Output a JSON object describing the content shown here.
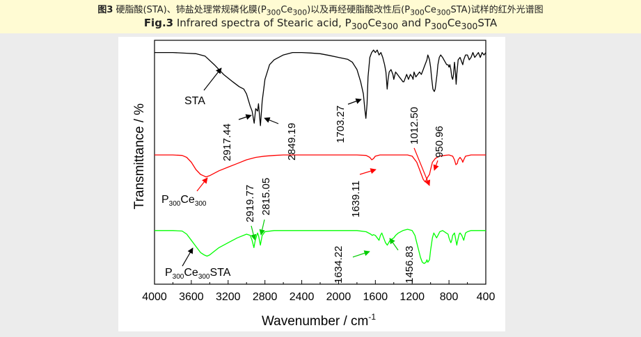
{
  "caption": {
    "cn_prefix": "图3",
    "cn_text_a": "硬脂酸(STA)、铈盐处理常规磷化膜(P",
    "cn_sub_a": "300",
    "cn_text_b": "Ce",
    "cn_sub_b": "300",
    "cn_text_c": ")以及再经硬脂酸改性后(P",
    "cn_sub_c": "300",
    "cn_text_d": "Ce",
    "cn_sub_d": "300",
    "cn_text_e": "STA)试样的红外光谱图",
    "en_prefix": "Fig.3",
    "en_text_a": "Infrared spectra of Stearic acid, P",
    "en_sub_a": "300",
    "en_text_b": "Ce",
    "en_sub_b": "300",
    "en_text_c": "and P",
    "en_sub_c": "300",
    "en_text_d": "Ce",
    "en_sub_d": "300",
    "en_text_e": "STA"
  },
  "chart_data": {
    "type": "line",
    "title": "Infrared spectra of Stearic acid, P300Ce300 and P300Ce300STA",
    "xlabel": "Wavenumber / cm",
    "xlabel_sup": "-1",
    "ylabel": "Transmittance / %",
    "xlim": [
      4000,
      400
    ],
    "ylim": [
      0,
      100
    ],
    "x_ticks": [
      4000,
      3600,
      3200,
      2800,
      2400,
      2000,
      1600,
      1200,
      800,
      400
    ],
    "y_ticks_labeled": false,
    "grid": false,
    "series": [
      {
        "name": "STA",
        "color": "#000000",
        "label_parts": [
          "STA"
        ],
        "points": [
          [
            4000,
            95
          ],
          [
            3800,
            95
          ],
          [
            3650,
            94.7
          ],
          [
            3550,
            94.5
          ],
          [
            3450,
            93.5
          ],
          [
            3350,
            90
          ],
          [
            3250,
            86
          ],
          [
            3150,
            83
          ],
          [
            3080,
            81
          ],
          [
            3030,
            80
          ],
          [
            3000,
            78
          ],
          [
            2960,
            73
          ],
          [
            2940,
            71
          ],
          [
            2917,
            66
          ],
          [
            2900,
            72
          ],
          [
            2880,
            71
          ],
          [
            2870,
            74
          ],
          [
            2849,
            65
          ],
          [
            2830,
            75
          ],
          [
            2800,
            84
          ],
          [
            2750,
            90
          ],
          [
            2700,
            92
          ],
          [
            2600,
            94
          ],
          [
            2500,
            95
          ],
          [
            2400,
            95
          ],
          [
            2300,
            94.8
          ],
          [
            2200,
            94.5
          ],
          [
            2100,
            93.8
          ],
          [
            2000,
            93
          ],
          [
            1900,
            92.2
          ],
          [
            1850,
            91
          ],
          [
            1800,
            88
          ],
          [
            1760,
            83
          ],
          [
            1730,
            78
          ],
          [
            1715,
            72
          ],
          [
            1703,
            68
          ],
          [
            1690,
            74
          ],
          [
            1680,
            85
          ],
          [
            1660,
            93
          ],
          [
            1640,
            95
          ],
          [
            1620,
            96
          ],
          [
            1600,
            95
          ],
          [
            1580,
            96
          ],
          [
            1560,
            94
          ],
          [
            1540,
            95
          ],
          [
            1520,
            93
          ],
          [
            1500,
            90
          ],
          [
            1485,
            87
          ],
          [
            1472,
            80
          ],
          [
            1462,
            84
          ],
          [
            1450,
            87
          ],
          [
            1430,
            88
          ],
          [
            1410,
            86
          ],
          [
            1400,
            84
          ],
          [
            1380,
            87
          ],
          [
            1360,
            86
          ],
          [
            1340,
            85
          ],
          [
            1320,
            84
          ],
          [
            1300,
            83
          ],
          [
            1290,
            83
          ],
          [
            1280,
            84
          ],
          [
            1260,
            86
          ],
          [
            1240,
            84
          ],
          [
            1220,
            86
          ],
          [
            1200,
            85
          ],
          [
            1190,
            84
          ],
          [
            1180,
            87
          ],
          [
            1160,
            85
          ],
          [
            1140,
            86
          ],
          [
            1120,
            87
          ],
          [
            1100,
            86
          ],
          [
            1080,
            88
          ],
          [
            1060,
            90
          ],
          [
            1040,
            92
          ],
          [
            1030,
            94
          ],
          [
            1020,
            93
          ],
          [
            1012,
            92
          ],
          [
            1000,
            89
          ],
          [
            990,
            85
          ],
          [
            975,
            80
          ],
          [
            960,
            79
          ],
          [
            950,
            80
          ],
          [
            940,
            83
          ],
          [
            930,
            86
          ],
          [
            920,
            90
          ],
          [
            905,
            93
          ],
          [
            890,
            94
          ],
          [
            870,
            93
          ],
          [
            855,
            92
          ],
          [
            840,
            91
          ],
          [
            825,
            90
          ],
          [
            810,
            90
          ],
          [
            800,
            89
          ],
          [
            790,
            90
          ],
          [
            780,
            88
          ],
          [
            770,
            85
          ],
          [
            760,
            84
          ],
          [
            750,
            86
          ],
          [
            740,
            91
          ],
          [
            730,
            87
          ],
          [
            722,
            82
          ],
          [
            715,
            86
          ],
          [
            700,
            92
          ],
          [
            680,
            93
          ],
          [
            660,
            91
          ],
          [
            650,
            90
          ],
          [
            640,
            92
          ],
          [
            620,
            94
          ],
          [
            600,
            94
          ],
          [
            580,
            92
          ],
          [
            560,
            93
          ],
          [
            540,
            95
          ],
          [
            520,
            93
          ],
          [
            500,
            94
          ],
          [
            480,
            95
          ],
          [
            460,
            93
          ],
          [
            440,
            95
          ],
          [
            420,
            94
          ],
          [
            400,
            95
          ]
        ]
      },
      {
        "name": "P300Ce300",
        "color": "#ff0000",
        "label_parts": [
          "P",
          "300",
          "Ce",
          "300"
        ],
        "points": [
          [
            4000,
            53
          ],
          [
            3800,
            53
          ],
          [
            3700,
            52.8
          ],
          [
            3650,
            52
          ],
          [
            3600,
            50
          ],
          [
            3550,
            47
          ],
          [
            3500,
            45
          ],
          [
            3470,
            44.5
          ],
          [
            3440,
            44
          ],
          [
            3400,
            44.5
          ],
          [
            3350,
            45.5
          ],
          [
            3300,
            46.5
          ],
          [
            3200,
            48
          ],
          [
            3100,
            49.5
          ],
          [
            3000,
            51
          ],
          [
            2900,
            52
          ],
          [
            2800,
            52.5
          ],
          [
            2700,
            52.8
          ],
          [
            2600,
            53
          ],
          [
            2400,
            53
          ],
          [
            2200,
            53
          ],
          [
            2000,
            53
          ],
          [
            1800,
            53
          ],
          [
            1700,
            52.8
          ],
          [
            1660,
            52
          ],
          [
            1639,
            51
          ],
          [
            1620,
            51.5
          ],
          [
            1600,
            52.5
          ],
          [
            1550,
            53
          ],
          [
            1450,
            53
          ],
          [
            1350,
            53
          ],
          [
            1250,
            53
          ],
          [
            1200,
            52.5
          ],
          [
            1150,
            50
          ],
          [
            1120,
            47
          ],
          [
            1100,
            45
          ],
          [
            1080,
            43
          ],
          [
            1060,
            42
          ],
          [
            1050,
            42.5
          ],
          [
            1030,
            44
          ],
          [
            1012,
            45
          ],
          [
            1000,
            47
          ],
          [
            980,
            50
          ],
          [
            960,
            51
          ],
          [
            950,
            51.5
          ],
          [
            930,
            52
          ],
          [
            900,
            52.5
          ],
          [
            850,
            52.8
          ],
          [
            800,
            53
          ],
          [
            760,
            52.5
          ],
          [
            740,
            51
          ],
          [
            725,
            49
          ],
          [
            710,
            49.5
          ],
          [
            700,
            51
          ],
          [
            680,
            52
          ],
          [
            660,
            51
          ],
          [
            650,
            50
          ],
          [
            640,
            51
          ],
          [
            620,
            52.5
          ],
          [
            560,
            53
          ],
          [
            500,
            53
          ],
          [
            450,
            53
          ],
          [
            400,
            53
          ]
        ]
      },
      {
        "name": "P300Ce300STA",
        "color": "#00ff00",
        "label_parts": [
          "P",
          "300",
          "Ce",
          "300",
          "STA"
        ],
        "points": [
          [
            4000,
            22
          ],
          [
            3800,
            22
          ],
          [
            3700,
            21.8
          ],
          [
            3650,
            20.5
          ],
          [
            3600,
            18
          ],
          [
            3550,
            15.5
          ],
          [
            3500,
            13
          ],
          [
            3460,
            12
          ],
          [
            3430,
            11.5
          ],
          [
            3400,
            12
          ],
          [
            3350,
            13.5
          ],
          [
            3300,
            15
          ],
          [
            3200,
            17
          ],
          [
            3100,
            19
          ],
          [
            3000,
            20.5
          ],
          [
            2960,
            20
          ],
          [
            2940,
            18
          ],
          [
            2920,
            15
          ],
          [
            2905,
            18
          ],
          [
            2880,
            21
          ],
          [
            2870,
            20
          ],
          [
            2850,
            16
          ],
          [
            2830,
            20
          ],
          [
            2800,
            21.5
          ],
          [
            2700,
            22
          ],
          [
            2600,
            22
          ],
          [
            2400,
            22
          ],
          [
            2200,
            22
          ],
          [
            2000,
            22
          ],
          [
            1800,
            22
          ],
          [
            1700,
            21.5
          ],
          [
            1650,
            20.5
          ],
          [
            1634,
            20
          ],
          [
            1620,
            20.3
          ],
          [
            1600,
            20
          ],
          [
            1580,
            19
          ],
          [
            1560,
            18
          ],
          [
            1545,
            20
          ],
          [
            1530,
            21
          ],
          [
            1510,
            19
          ],
          [
            1490,
            17
          ],
          [
            1470,
            16
          ],
          [
            1456,
            17
          ],
          [
            1440,
            18
          ],
          [
            1420,
            18.5
          ],
          [
            1400,
            19
          ],
          [
            1380,
            20
          ],
          [
            1350,
            21
          ],
          [
            1300,
            22
          ],
          [
            1250,
            22.5
          ],
          [
            1200,
            22
          ],
          [
            1170,
            20
          ],
          [
            1150,
            17
          ],
          [
            1130,
            14
          ],
          [
            1110,
            11
          ],
          [
            1090,
            9
          ],
          [
            1070,
            8.5
          ],
          [
            1050,
            9
          ],
          [
            1040,
            10
          ],
          [
            1030,
            9
          ],
          [
            1012,
            10
          ],
          [
            1000,
            14
          ],
          [
            980,
            19
          ],
          [
            965,
            21
          ],
          [
            950,
            20
          ],
          [
            935,
            19
          ],
          [
            920,
            20
          ],
          [
            900,
            21.5
          ],
          [
            870,
            22
          ],
          [
            850,
            21.5
          ],
          [
            830,
            21
          ],
          [
            810,
            20.5
          ],
          [
            800,
            19
          ],
          [
            790,
            18
          ],
          [
            780,
            17
          ],
          [
            770,
            18
          ],
          [
            760,
            20
          ],
          [
            740,
            21
          ],
          [
            725,
            18
          ],
          [
            715,
            16
          ],
          [
            705,
            18
          ],
          [
            690,
            20.5
          ],
          [
            680,
            21
          ],
          [
            660,
            20
          ],
          [
            650,
            19
          ],
          [
            640,
            18
          ],
          [
            630,
            19.5
          ],
          [
            620,
            21
          ],
          [
            600,
            21.5
          ],
          [
            560,
            22
          ],
          [
            500,
            22
          ],
          [
            450,
            22
          ],
          [
            400,
            22
          ]
        ]
      }
    ],
    "annotations": [
      {
        "text": "2917.44"
      },
      {
        "text": "2849.19"
      },
      {
        "text": "1703.27"
      },
      {
        "text": "1012.50"
      },
      {
        "text": "950.96"
      },
      {
        "text": "1639.11"
      },
      {
        "text": "2919.77"
      },
      {
        "text": "2815.05"
      },
      {
        "text": "1634.22"
      },
      {
        "text": "1456.83"
      }
    ]
  }
}
